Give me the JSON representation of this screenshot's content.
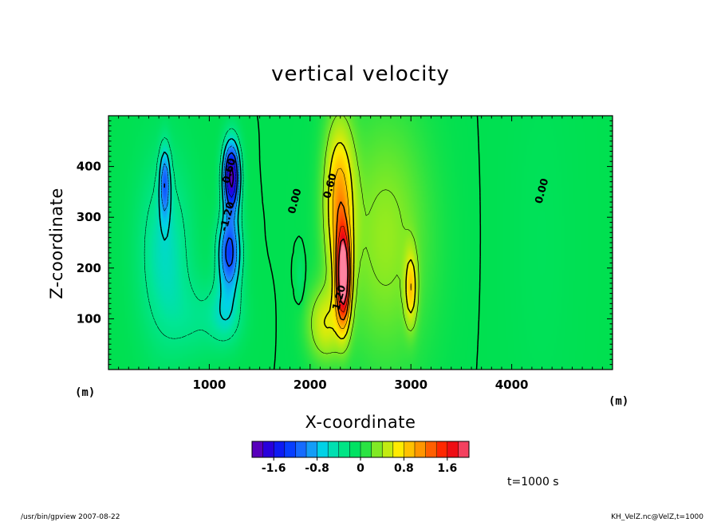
{
  "chart_data": {
    "type": "heatmap",
    "title": "vertical velocity",
    "xlabel": "X-coordinate",
    "ylabel": "Z-coordinate",
    "x_unit": "(m)",
    "y_unit": "(m)",
    "xlim": [
      0,
      5000
    ],
    "ylim": [
      0,
      500
    ],
    "x_ticks": [
      1000,
      2000,
      3000,
      4000
    ],
    "y_ticks": [
      100,
      200,
      300,
      400
    ],
    "colorbar": {
      "range": [
        -2.0,
        2.0
      ],
      "tick_labels": [
        "-1.6",
        "-0.8",
        "0",
        "0.8",
        "1.6"
      ],
      "tick_values": [
        -1.6,
        -0.8,
        0,
        0.8,
        1.6
      ]
    },
    "contour_labels": [
      {
        "text": "0.60",
        "x": 1230,
        "y": 390
      },
      {
        "text": "-1.20",
        "x": 1210,
        "y": 300
      },
      {
        "text": "0.00",
        "x": 1880,
        "y": 330
      },
      {
        "text": "0.60",
        "x": 2230,
        "y": 360
      },
      {
        "text": "1.20",
        "x": 2320,
        "y": 140
      },
      {
        "text": "0.00",
        "x": 4330,
        "y": 350
      }
    ],
    "extrema": [
      {
        "sign": "negative",
        "x": 1220,
        "y": 380,
        "value": -1.9
      },
      {
        "sign": "negative",
        "x": 1200,
        "y": 230,
        "value": -1.3
      },
      {
        "sign": "negative",
        "x": 560,
        "y": 370,
        "value": -0.9
      },
      {
        "sign": "positive",
        "x": 2330,
        "y": 180,
        "value": 2.0
      },
      {
        "sign": "positive",
        "x": 3000,
        "y": 160,
        "value": 0.7
      }
    ]
  },
  "info": {
    "time": "t=1000 s",
    "footer_left": "/usr/bin/gpview   2007-08-22",
    "footer_right": "KH_VelZ.nc@VelZ,t=1000"
  }
}
